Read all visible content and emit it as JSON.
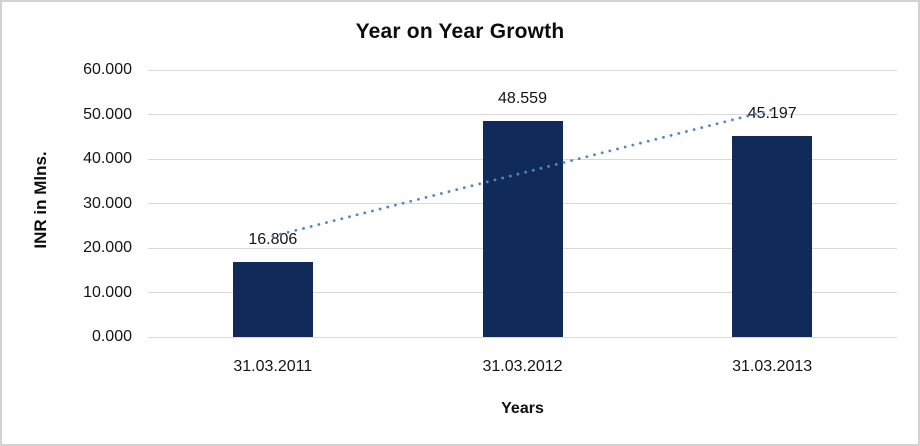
{
  "frame": {
    "background_color": "#ffffff",
    "border_color": "#d2d2d2"
  },
  "chart_data": {
    "type": "bar",
    "title": "Year on Year Growth",
    "xlabel": "Years",
    "ylabel": "INR in Mlns.",
    "categories": [
      "31.03.2011",
      "31.03.2012",
      "31.03.2013"
    ],
    "values": [
      16.806,
      48.559,
      45.197
    ],
    "data_labels": [
      "16.806",
      "48.559",
      "45.197"
    ],
    "ylim": [
      0,
      60
    ],
    "ytick_step": 10,
    "ytick_labels": [
      "0.000",
      "10.000",
      "20.000",
      "30.000",
      "40.000",
      "50.000",
      "60.000"
    ],
    "grid": true,
    "legend": "none",
    "bar_color": "#102b5a",
    "gridline_color": "#d9d9d9",
    "trendline": {
      "type": "linear",
      "style": "dotted",
      "color": "#5287c5",
      "start_value": 22.66,
      "end_value": 51.05
    }
  }
}
